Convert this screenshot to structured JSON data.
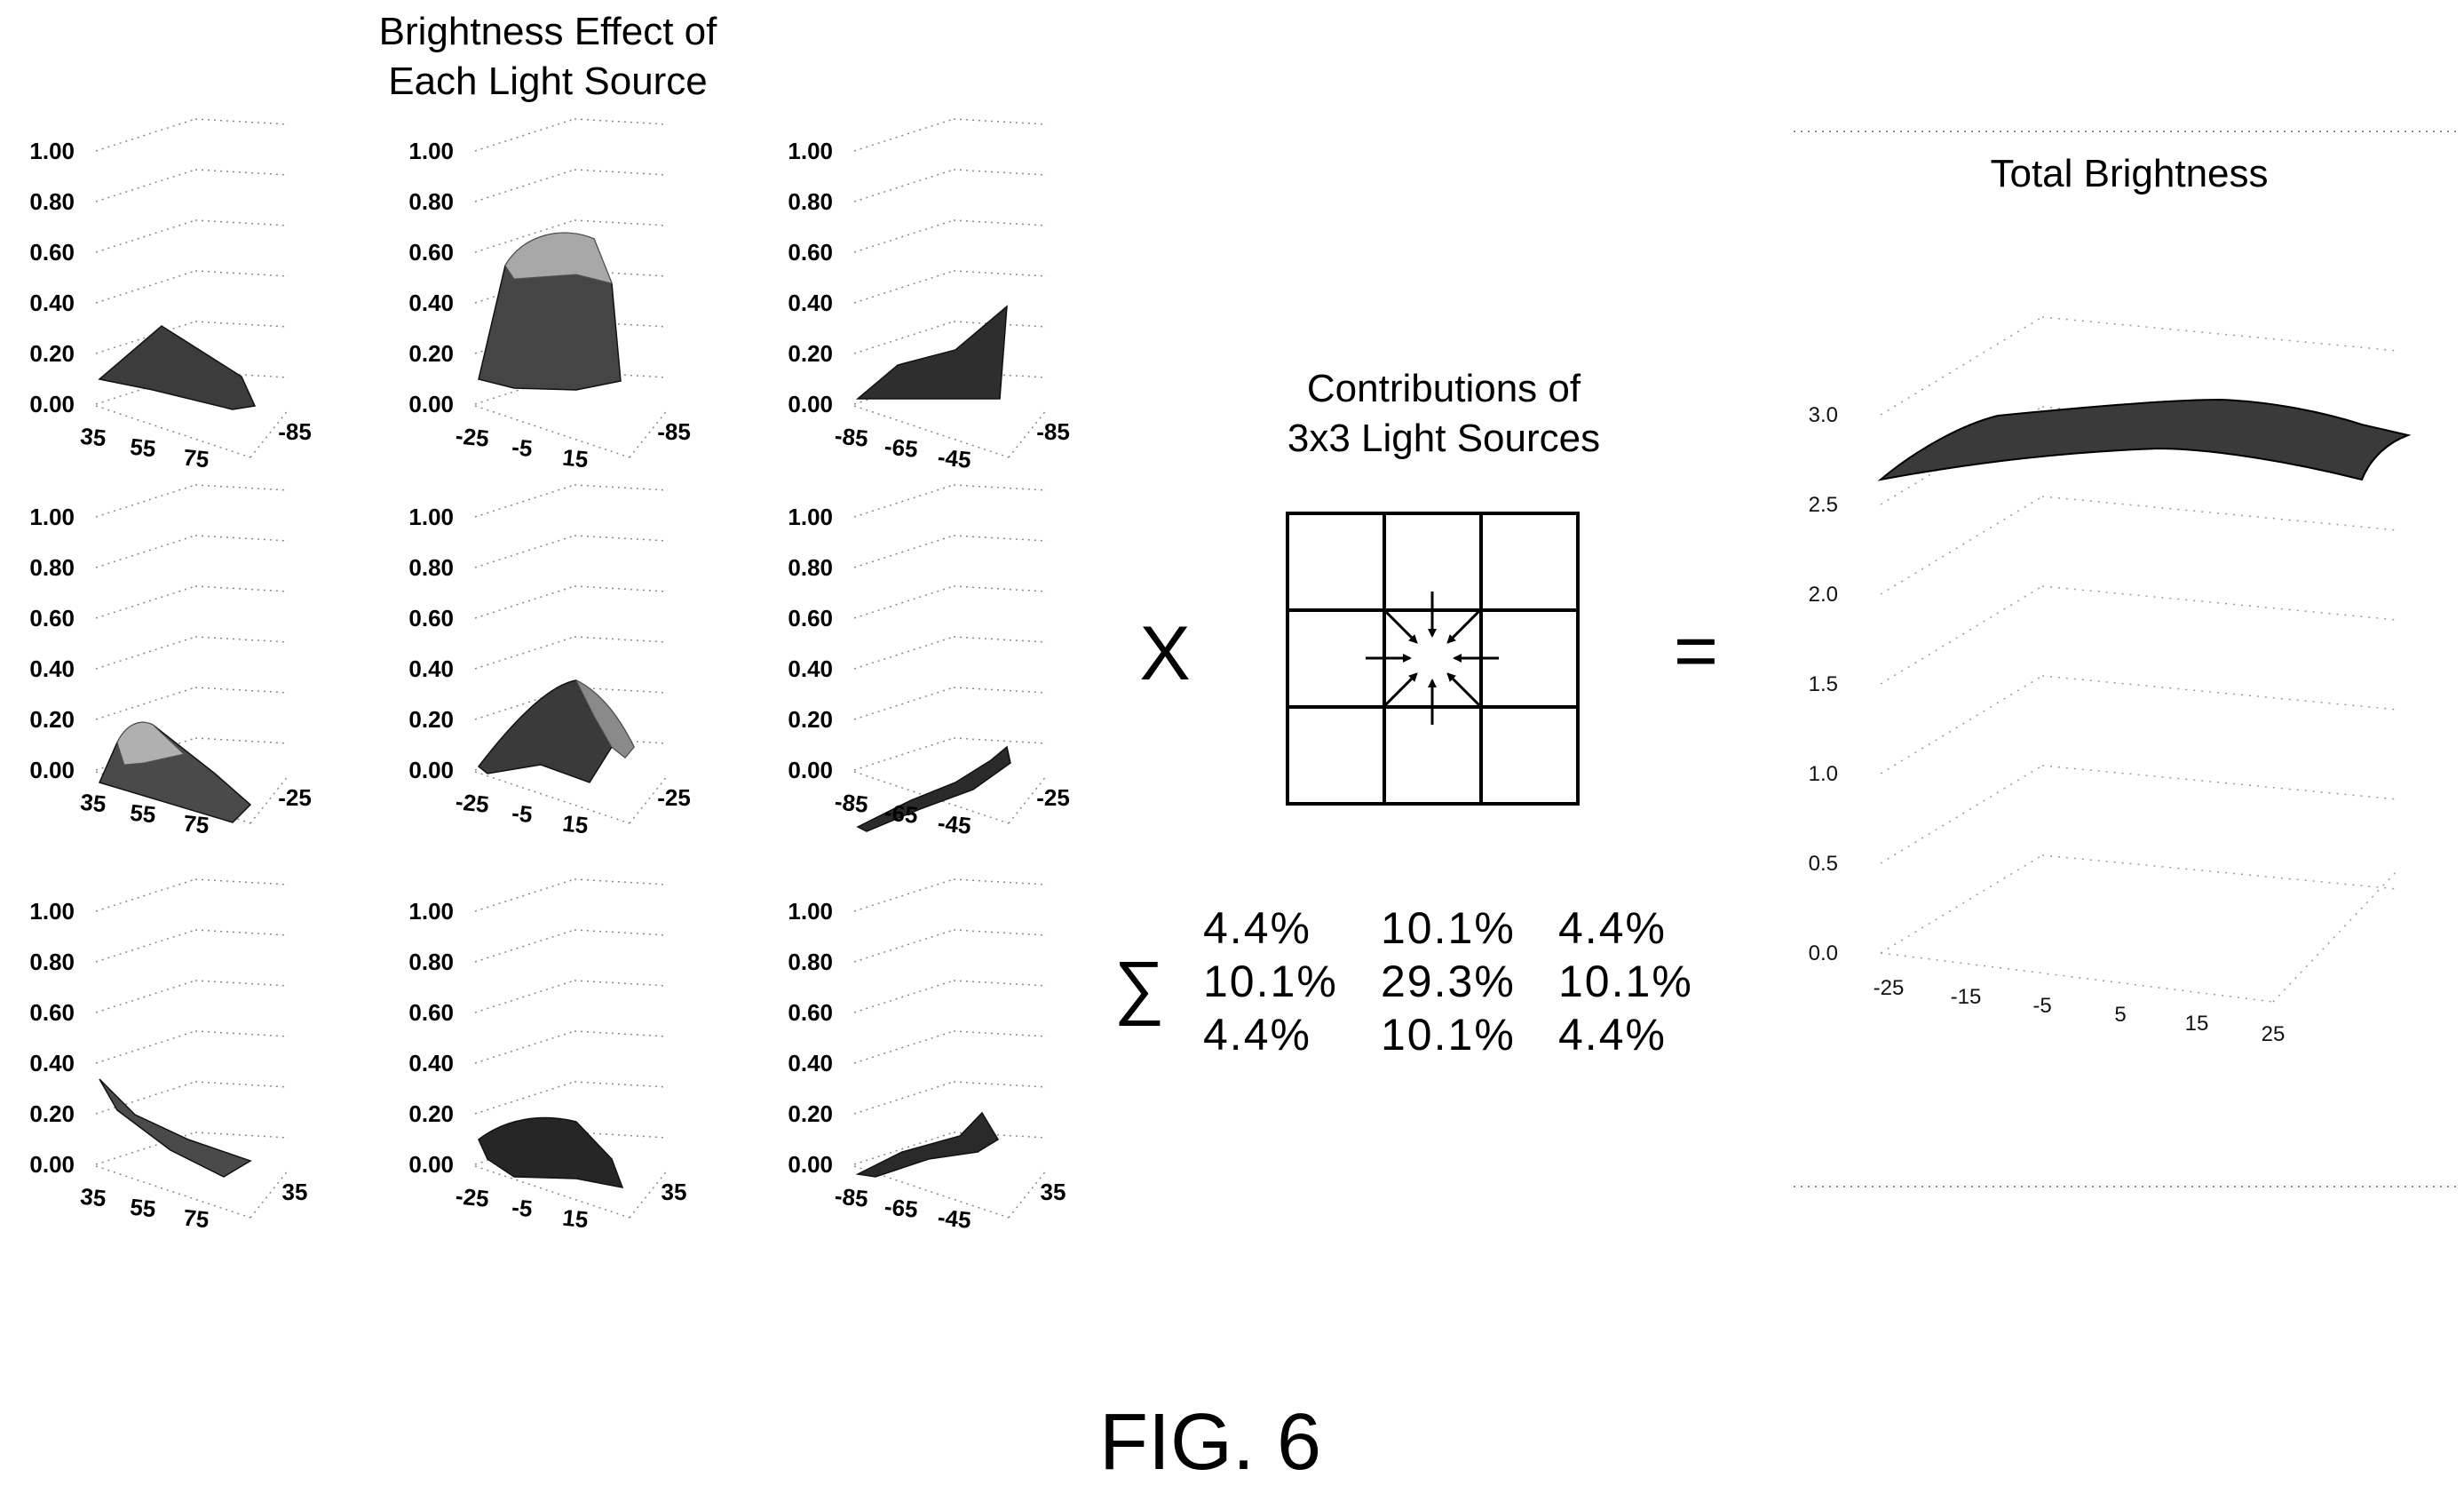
{
  "left_title": [
    "Brightness Effect of",
    "Each Light Source"
  ],
  "small_charts": [
    {
      "id": "r1c1",
      "z_ticks": [
        "1.00",
        "0.80",
        "0.60",
        "0.40",
        "0.20",
        "0.00"
      ],
      "x_ticks": [
        "35",
        "55",
        "75"
      ],
      "y_tick": "-85",
      "shape": "ridge-left",
      "shade": "#3c3c3c",
      "highlight": null
    },
    {
      "id": "r1c2",
      "z_ticks": [
        "1.00",
        "0.80",
        "0.60",
        "0.40",
        "0.20",
        "0.00"
      ],
      "x_ticks": [
        "-25",
        "-5",
        "15"
      ],
      "y_tick": "-85",
      "shape": "dome-back",
      "shade": "#454545",
      "highlight": "#a8a8a8"
    },
    {
      "id": "r1c3",
      "z_ticks": [
        "1.00",
        "0.80",
        "0.60",
        "0.40",
        "0.20",
        "0.00"
      ],
      "x_ticks": [
        "-85",
        "-65",
        "-45"
      ],
      "y_tick": "-85",
      "shape": "rise-right",
      "shade": "#2e2e2e",
      "highlight": null
    },
    {
      "id": "r2c1",
      "z_ticks": [
        "1.00",
        "0.80",
        "0.60",
        "0.40",
        "0.20",
        "0.00"
      ],
      "x_ticks": [
        "35",
        "55",
        "75"
      ],
      "y_tick": "-25",
      "shape": "fall-right",
      "shade": "#4a4a4a",
      "highlight": "#b0b0b0"
    },
    {
      "id": "r2c2",
      "z_ticks": [
        "1.00",
        "0.80",
        "0.60",
        "0.40",
        "0.20",
        "0.00"
      ],
      "x_ticks": [
        "-25",
        "-5",
        "15"
      ],
      "y_tick": "-25",
      "shape": "peak",
      "shade": "#3a3a3a",
      "highlight": "#8a8a8a"
    },
    {
      "id": "r2c3",
      "z_ticks": [
        "1.00",
        "0.80",
        "0.60",
        "0.40",
        "0.20",
        "0.00"
      ],
      "x_ticks": [
        "-85",
        "-65",
        "-45"
      ],
      "y_tick": "-25",
      "shape": "ribbon-up",
      "shade": "#2a2a2a",
      "highlight": null
    },
    {
      "id": "r3c1",
      "z_ticks": [
        "1.00",
        "0.80",
        "0.60",
        "0.40",
        "0.20",
        "0.00"
      ],
      "x_ticks": [
        "35",
        "55",
        "75"
      ],
      "y_tick": "35",
      "shape": "ribbon-down",
      "shade": "#4a4a4a",
      "highlight": null
    },
    {
      "id": "r3c2",
      "z_ticks": [
        "1.00",
        "0.80",
        "0.60",
        "0.40",
        "0.20",
        "0.00"
      ],
      "x_ticks": [
        "-25",
        "-5",
        "15"
      ],
      "y_tick": "35",
      "shape": "low-dome",
      "shade": "#262626",
      "highlight": null
    },
    {
      "id": "r3c3",
      "z_ticks": [
        "1.00",
        "0.80",
        "0.60",
        "0.40",
        "0.20",
        "0.00"
      ],
      "x_ticks": [
        "-85",
        "-65",
        "-45"
      ],
      "y_tick": "35",
      "shape": "ribbon-bump",
      "shade": "#2a2a2a",
      "highlight": null
    }
  ],
  "multiply_symbol": "X",
  "equals_symbol": "=",
  "sum_symbol": "∑",
  "contrib_title": [
    "Contributions of",
    "3x3 Light Sources"
  ],
  "contrib_matrix": [
    [
      "4.4%",
      "10.1%",
      "4.4%"
    ],
    [
      "10.1%",
      "29.3%",
      "10.1%"
    ],
    [
      "4.4%",
      "10.1%",
      "4.4%"
    ]
  ],
  "total_title": "Total Brightness",
  "total_chart": {
    "z_ticks": [
      "3.0",
      "2.5",
      "2.0",
      "1.5",
      "1.0",
      "0.5",
      "0.0"
    ],
    "x_ticks": [
      "-25",
      "-15",
      "-5",
      "5",
      "15",
      "25"
    ],
    "shade": "#3a3a3a"
  },
  "figure_label": "FIG. 6"
}
